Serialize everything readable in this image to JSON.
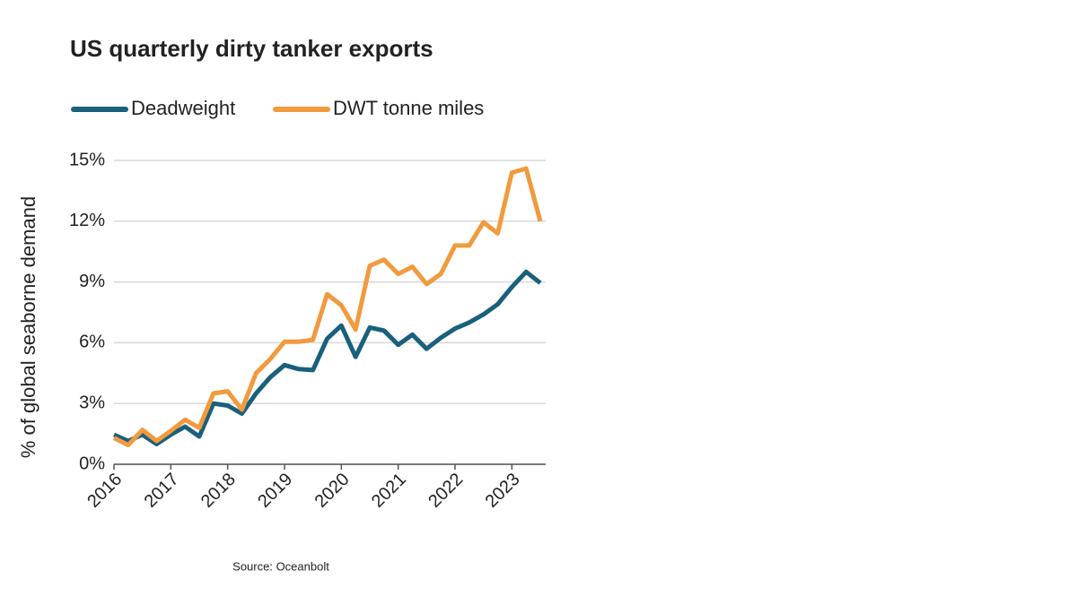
{
  "chart_data": {
    "type": "line",
    "title": "US quarterly dirty tanker exports",
    "y_label": "% of global seaborne demand",
    "source": "Source: Oceanbolt",
    "categories": [
      "2016",
      null,
      null,
      null,
      "2017",
      null,
      null,
      null,
      "2018",
      null,
      null,
      null,
      "2019",
      null,
      null,
      null,
      "2020",
      null,
      null,
      null,
      "2021",
      null,
      null,
      null,
      "2022",
      null,
      null,
      null,
      "2023",
      null,
      null
    ],
    "series": [
      {
        "name": "Deadweight",
        "color": "#19607c",
        "values": [
          1.46,
          1.15,
          1.46,
          1.0,
          1.46,
          1.86,
          1.37,
          3.0,
          2.9,
          2.5,
          3.5,
          4.3,
          4.9,
          4.7,
          4.65,
          6.2,
          6.85,
          5.3,
          6.75,
          6.6,
          5.9,
          6.4,
          5.7,
          6.25,
          6.7,
          7.0,
          7.4,
          7.9,
          8.75,
          9.5,
          8.95
        ]
      },
      {
        "name": "DWT tonne miles",
        "color": "#f19a3e",
        "values": [
          1.3,
          0.95,
          1.7,
          1.15,
          1.65,
          2.2,
          1.8,
          3.5,
          3.6,
          2.7,
          4.5,
          5.2,
          6.05,
          6.05,
          6.15,
          8.4,
          7.85,
          6.65,
          9.8,
          10.1,
          9.4,
          9.75,
          8.9,
          9.4,
          10.8,
          10.8,
          11.95,
          11.4,
          14.4,
          14.6,
          12.0
        ]
      }
    ],
    "ylim": [
      0,
      15
    ],
    "yticks": [
      {
        "value": 0,
        "label": "0%"
      },
      {
        "value": 3,
        "label": "3%"
      },
      {
        "value": 6,
        "label": "6%"
      },
      {
        "value": 9,
        "label": "9%"
      },
      {
        "value": 12,
        "label": "12%"
      },
      {
        "value": 15,
        "label": "15%"
      }
    ],
    "grid": true
  }
}
